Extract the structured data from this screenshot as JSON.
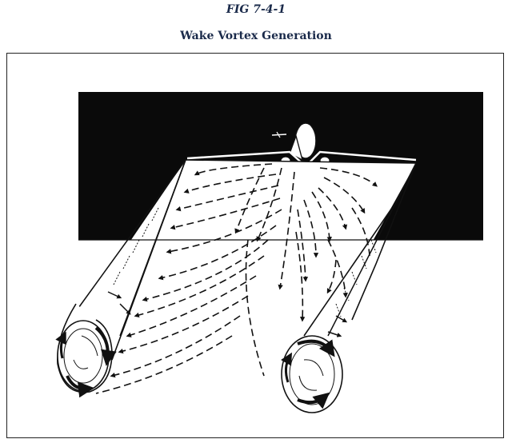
{
  "figure": {
    "label": "FIG 7-4-1",
    "title": "Wake Vortex Generation"
  },
  "colors": {
    "title_text": "#1a2a4a",
    "ink": "#111111",
    "background": "#ffffff"
  },
  "icons": {
    "aircraft": "aircraft-front-view-icon",
    "vortex_tube": "vortex-tube-icon",
    "rotation_arrow": "circular-arrow-icon"
  }
}
